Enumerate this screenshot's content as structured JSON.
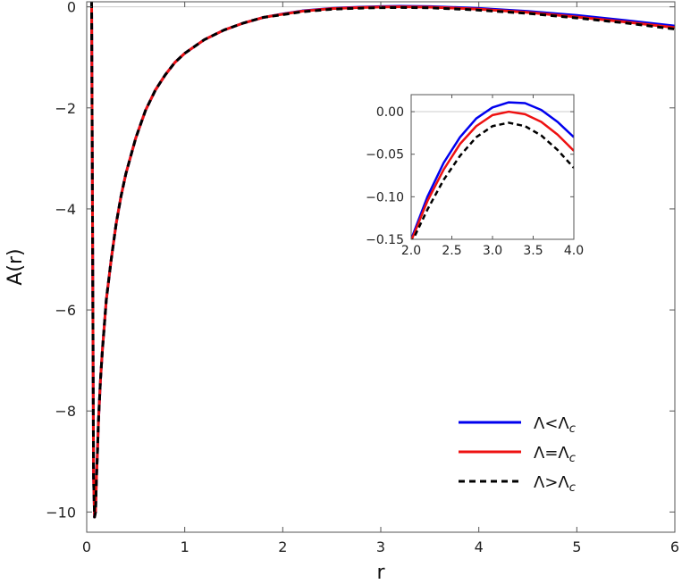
{
  "colors": {
    "blue": "#0000ee",
    "red": "#ee1111",
    "black": "#000000",
    "frame": "#555555",
    "zero_line": "#cccccc"
  },
  "chart_data": [
    {
      "id": "main",
      "type": "line",
      "xlabel": "r",
      "ylabel": "A(r)",
      "xlim": [
        0,
        6
      ],
      "ylim": [
        -10.4,
        0.1
      ],
      "xticks": [
        0,
        1,
        2,
        3,
        4,
        5,
        6
      ],
      "xtick_labels": [
        "0",
        "1",
        "2",
        "3",
        "4",
        "5",
        "6"
      ],
      "yticks": [
        0,
        -2,
        -4,
        -6,
        -8,
        -10
      ],
      "ytick_labels": [
        "0",
        "−2",
        "−4",
        "−6",
        "−8",
        "−10"
      ],
      "legend_position": "bottom-right",
      "series": [
        {
          "label": "Λ<Λc",
          "legend_main": "Λ<Λ",
          "legend_sub": "c",
          "color": "#0000ee",
          "dash": "solid",
          "x": [
            0.05,
            0.06,
            0.07,
            0.08,
            0.09,
            0.1,
            0.11,
            0.12,
            0.14,
            0.16,
            0.18,
            0.2,
            0.25,
            0.3,
            0.35,
            0.4,
            0.5,
            0.6,
            0.7,
            0.8,
            0.9,
            1.0,
            1.2,
            1.4,
            1.6,
            1.8,
            2.0,
            2.2,
            2.5,
            2.8,
            3.0,
            3.2,
            3.5,
            3.8,
            4.0,
            4.5,
            5.0,
            5.5,
            6.0
          ],
          "y": [
            0.1,
            -4.5,
            -9.3,
            -10.1,
            -10.0,
            -9.3,
            -8.8,
            -8.2,
            -7.4,
            -6.8,
            -6.3,
            -5.8,
            -5.0,
            -4.3,
            -3.75,
            -3.3,
            -2.6,
            -2.05,
            -1.65,
            -1.35,
            -1.1,
            -0.92,
            -0.65,
            -0.46,
            -0.32,
            -0.21,
            -0.14,
            -0.08,
            -0.03,
            -0.005,
            0.005,
            0.011,
            0.006,
            -0.015,
            -0.03,
            -0.09,
            -0.17,
            -0.27,
            -0.38
          ]
        },
        {
          "label": "Λ=Λc",
          "legend_main": "Λ=Λ",
          "legend_sub": "c",
          "color": "#ee1111",
          "dash": "solid",
          "x": [
            0.05,
            0.06,
            0.07,
            0.08,
            0.09,
            0.1,
            0.11,
            0.12,
            0.14,
            0.16,
            0.18,
            0.2,
            0.25,
            0.3,
            0.35,
            0.4,
            0.5,
            0.6,
            0.7,
            0.8,
            0.9,
            1.0,
            1.2,
            1.4,
            1.6,
            1.8,
            2.0,
            2.2,
            2.5,
            2.8,
            3.0,
            3.2,
            3.5,
            3.8,
            4.0,
            4.5,
            5.0,
            5.5,
            6.0
          ],
          "y": [
            0.1,
            -4.5,
            -9.3,
            -10.1,
            -10.0,
            -9.3,
            -8.8,
            -8.2,
            -7.4,
            -6.8,
            -6.3,
            -5.8,
            -5.0,
            -4.3,
            -3.75,
            -3.3,
            -2.6,
            -2.05,
            -1.65,
            -1.35,
            -1.1,
            -0.92,
            -0.65,
            -0.46,
            -0.32,
            -0.21,
            -0.145,
            -0.085,
            -0.035,
            -0.012,
            -0.004,
            0.0,
            -0.006,
            -0.028,
            -0.046,
            -0.11,
            -0.2,
            -0.3,
            -0.41
          ]
        },
        {
          "label": "Λ>Λc",
          "legend_main": "Λ>Λ",
          "legend_sub": "c",
          "color": "#000000",
          "dash": "dashed",
          "x": [
            0.05,
            0.06,
            0.07,
            0.08,
            0.09,
            0.1,
            0.11,
            0.12,
            0.14,
            0.16,
            0.18,
            0.2,
            0.25,
            0.3,
            0.35,
            0.4,
            0.5,
            0.6,
            0.7,
            0.8,
            0.9,
            1.0,
            1.2,
            1.4,
            1.6,
            1.8,
            2.0,
            2.2,
            2.5,
            2.8,
            3.0,
            3.2,
            3.5,
            3.8,
            4.0,
            4.5,
            5.0,
            5.5,
            6.0
          ],
          "y": [
            0.1,
            -4.5,
            -9.3,
            -10.1,
            -10.0,
            -9.3,
            -8.8,
            -8.2,
            -7.4,
            -6.8,
            -6.3,
            -5.8,
            -5.0,
            -4.3,
            -3.75,
            -3.3,
            -2.6,
            -2.05,
            -1.65,
            -1.35,
            -1.1,
            -0.92,
            -0.65,
            -0.46,
            -0.32,
            -0.21,
            -0.155,
            -0.097,
            -0.047,
            -0.025,
            -0.017,
            -0.013,
            -0.02,
            -0.045,
            -0.065,
            -0.13,
            -0.22,
            -0.32,
            -0.44
          ]
        }
      ]
    },
    {
      "id": "inset",
      "type": "line",
      "xlabel": "",
      "ylabel": "",
      "xlim": [
        2.0,
        4.0
      ],
      "ylim": [
        -0.15,
        0.02
      ],
      "xticks": [
        2.0,
        2.5,
        3.0,
        3.5,
        4.0
      ],
      "xtick_labels": [
        "2.0",
        "2.5",
        "3.0",
        "3.5",
        "4.0"
      ],
      "yticks": [
        0.0,
        -0.05,
        -0.1,
        -0.15
      ],
      "ytick_labels": [
        "0.00",
        "−0.05",
        "−0.10",
        "−0.15"
      ],
      "series": [
        {
          "label": "Λ<Λc",
          "color": "#0000ee",
          "dash": "solid",
          "x": [
            2.0,
            2.2,
            2.4,
            2.6,
            2.8,
            3.0,
            3.2,
            3.4,
            3.6,
            3.8,
            4.0
          ],
          "y": [
            -0.15,
            -0.1,
            -0.06,
            -0.03,
            -0.008,
            0.005,
            0.011,
            0.01,
            0.002,
            -0.012,
            -0.03
          ]
        },
        {
          "label": "Λ=Λc",
          "color": "#ee1111",
          "dash": "solid",
          "x": [
            2.0,
            2.2,
            2.4,
            2.6,
            2.8,
            3.0,
            3.2,
            3.4,
            3.6,
            3.8,
            4.0
          ],
          "y": [
            -0.152,
            -0.105,
            -0.068,
            -0.038,
            -0.017,
            -0.004,
            0.0,
            -0.003,
            -0.012,
            -0.027,
            -0.046
          ]
        },
        {
          "label": "Λ>Λc",
          "color": "#000000",
          "dash": "dashed",
          "x": [
            2.0,
            2.2,
            2.4,
            2.6,
            2.8,
            3.0,
            3.2,
            3.4,
            3.6,
            3.8,
            4.0
          ],
          "y": [
            -0.155,
            -0.115,
            -0.08,
            -0.052,
            -0.03,
            -0.017,
            -0.013,
            -0.017,
            -0.028,
            -0.045,
            -0.066
          ]
        }
      ]
    }
  ]
}
